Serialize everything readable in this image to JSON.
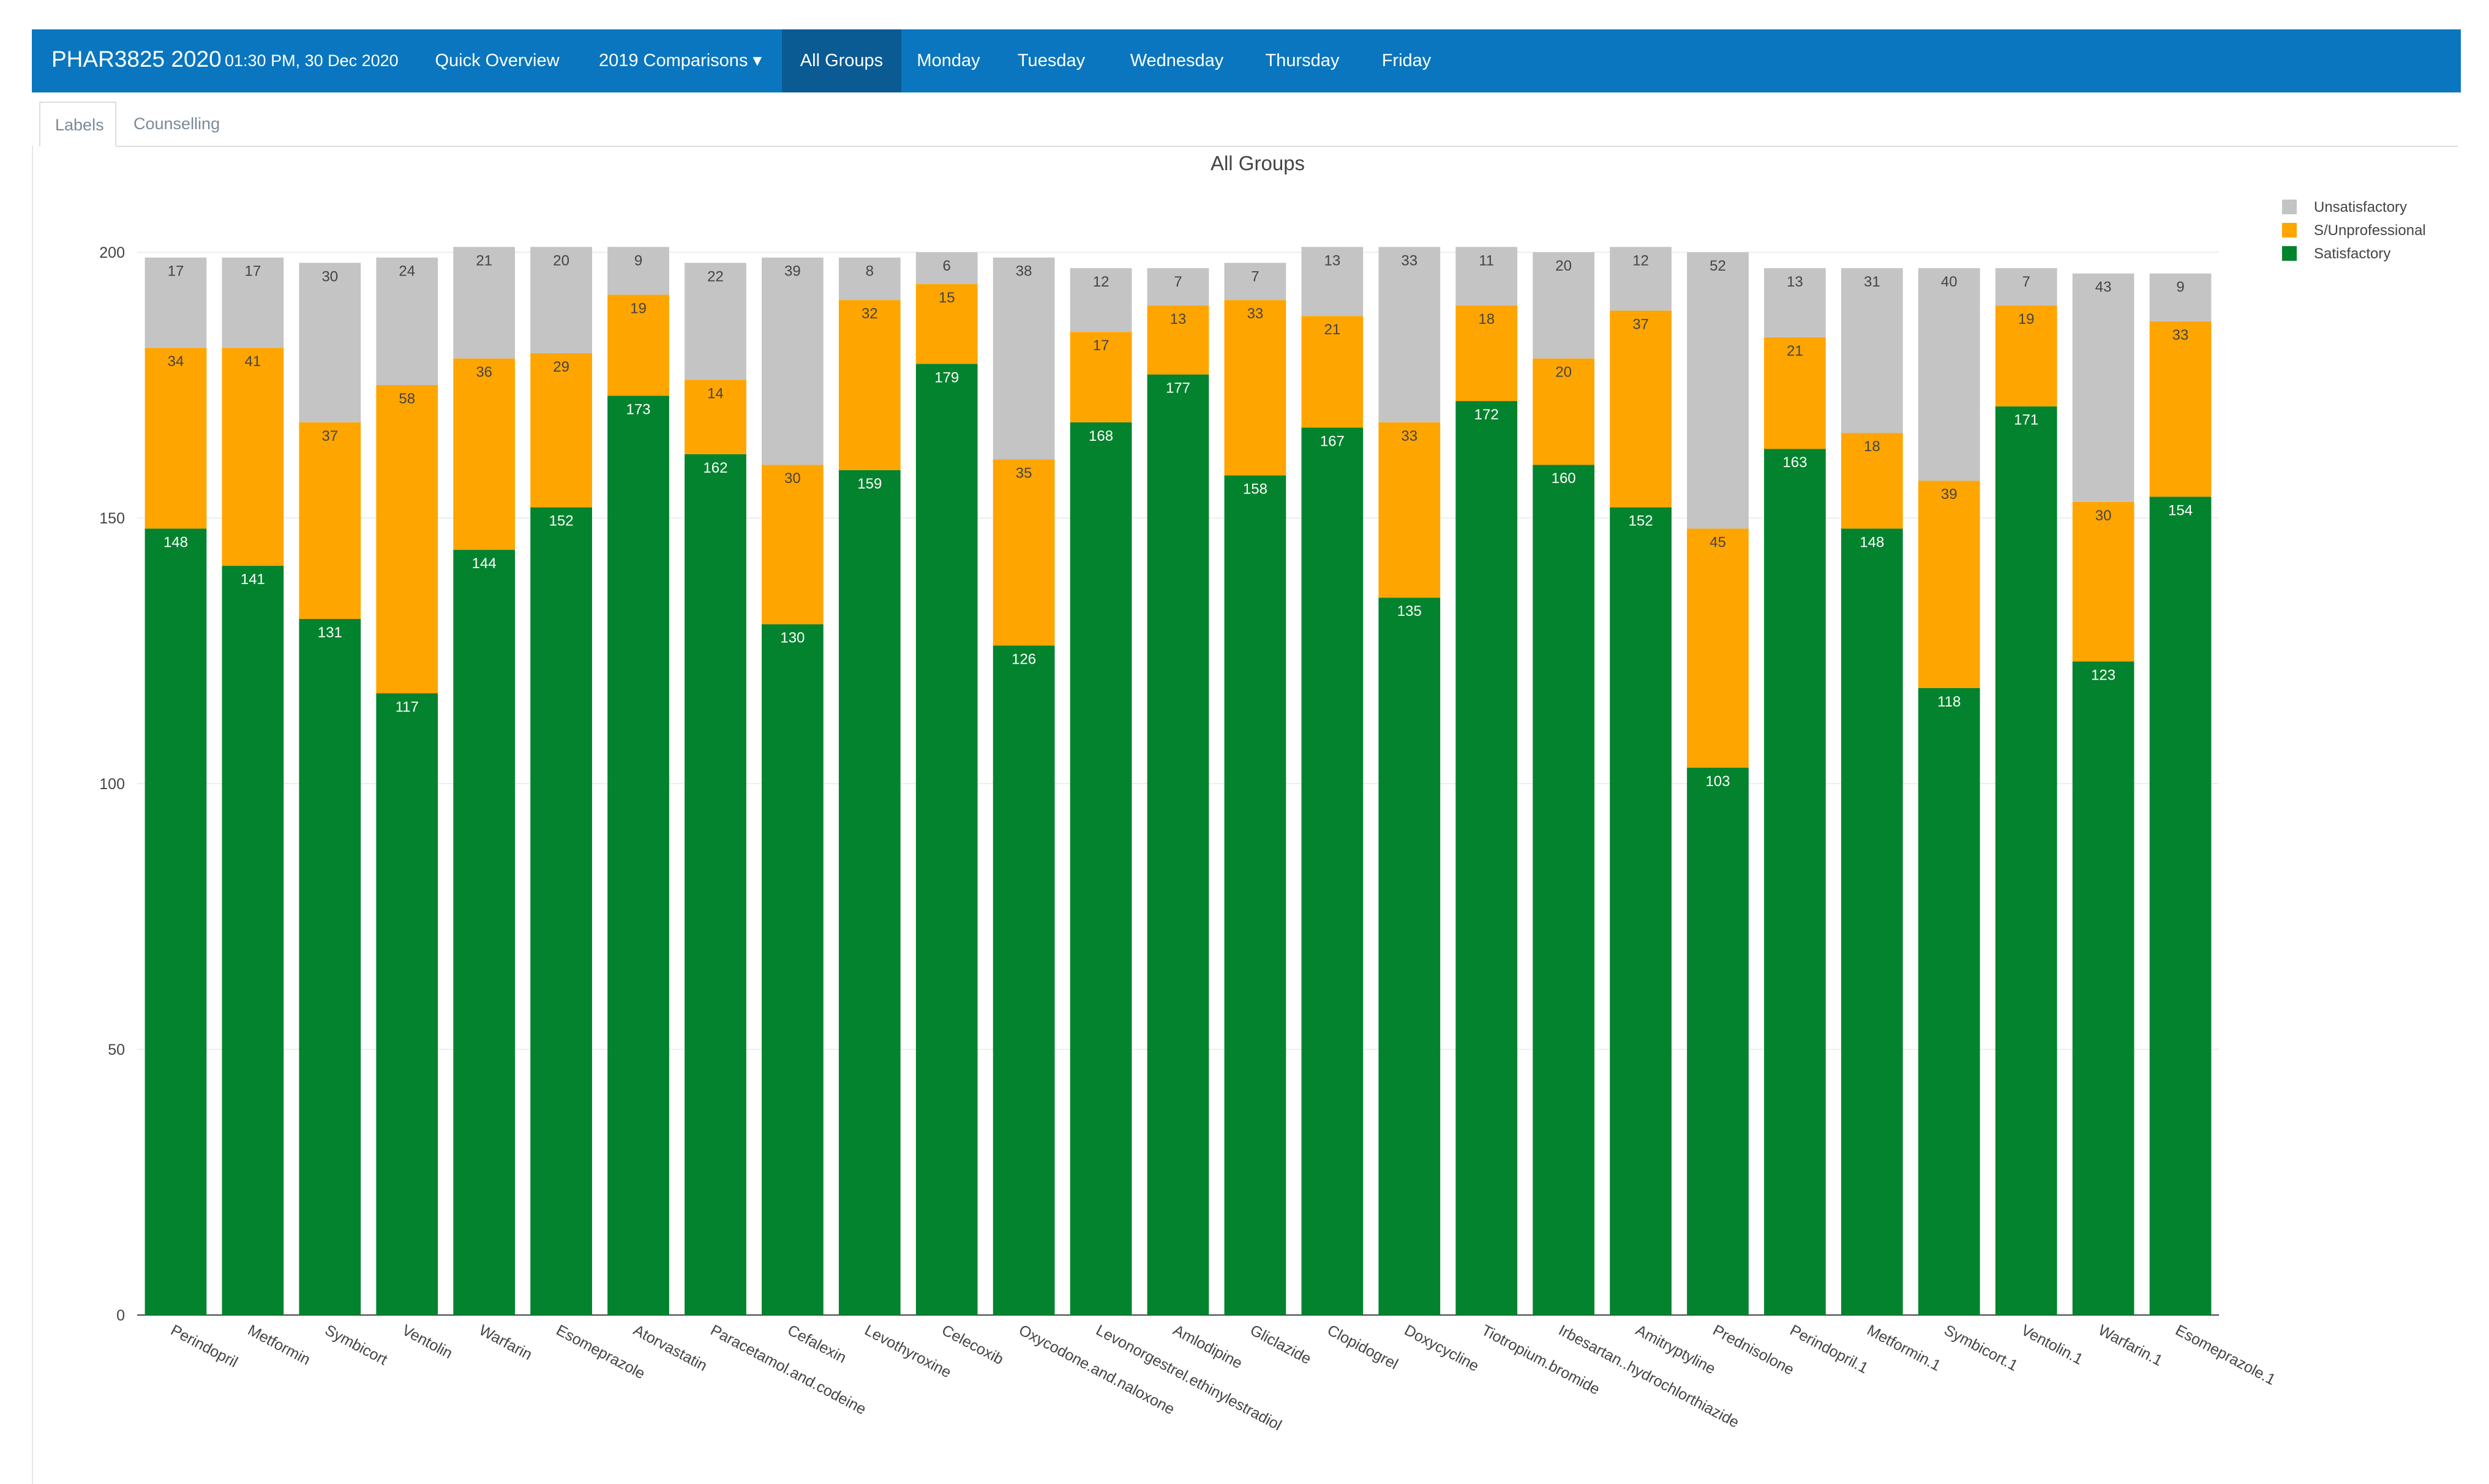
{
  "app": {
    "brand": "PHAR3825 2020",
    "datetime": "01:30 PM, 30 Dec 2020"
  },
  "nav": {
    "items": [
      {
        "label": "Quick Overview",
        "active": false
      },
      {
        "label": "2019 Comparisons ▾",
        "active": false
      },
      {
        "label": "All Groups",
        "active": true
      },
      {
        "label": "Monday",
        "active": false
      },
      {
        "label": "Tuesday",
        "active": false
      },
      {
        "label": "Wednesday",
        "active": false
      },
      {
        "label": "Thursday",
        "active": false
      },
      {
        "label": "Friday",
        "active": false
      }
    ]
  },
  "tabs": [
    {
      "label": "Labels",
      "active": true
    },
    {
      "label": "Counselling",
      "active": false
    }
  ],
  "colors": {
    "navbar": "#0a76bf",
    "nav_active": "#0a5a94",
    "satisfactory": "#04832e",
    "s_unprofessional": "#ffa500",
    "unsatisfactory": "#c4c4c4"
  },
  "chart_data": {
    "type": "bar",
    "stacked": true,
    "title": "All Groups",
    "xlabel": "",
    "ylabel": "",
    "ylim": [
      0,
      200
    ],
    "yticks": [
      0,
      50,
      100,
      150,
      200
    ],
    "grid": true,
    "legend_position": "top-right",
    "categories": [
      "Perindopril",
      "Metformin",
      "Symbicort",
      "Ventolin",
      "Warfarin",
      "Esomeprazole",
      "Atorvastatin",
      "Paracetamol.and.codeine",
      "Cefalexin",
      "Levothyroxine",
      "Celecoxib",
      "Oxycodone.and.naloxone",
      "Levonorgestrel.ethinylestradiol",
      "Amlodipine",
      "Gliclazide",
      "Clopidogrel",
      "Doxycycline",
      "Tiotropium.bromide",
      "Irbesartan..hydrochlorthiazide",
      "Amitryptyline",
      "Prednisolone",
      "Perindopril.1",
      "Metformin.1",
      "Symbicort.1",
      "Ventolin.1",
      "Warfarin.1",
      "Esomeprazole.1"
    ],
    "series": [
      {
        "name": "Satisfactory",
        "color": "#04832e",
        "values": [
          148,
          141,
          131,
          117,
          144,
          152,
          173,
          162,
          130,
          159,
          179,
          126,
          168,
          177,
          158,
          167,
          135,
          172,
          160,
          152,
          103,
          163,
          148,
          118,
          171,
          123,
          154
        ]
      },
      {
        "name": "S/Unprofessional",
        "color": "#ffa500",
        "values": [
          34,
          41,
          37,
          58,
          36,
          29,
          19,
          14,
          30,
          32,
          15,
          35,
          17,
          13,
          33,
          21,
          33,
          18,
          20,
          37,
          45,
          21,
          18,
          39,
          19,
          30,
          33
        ]
      },
      {
        "name": "Unsatisfactory",
        "color": "#c4c4c4",
        "values": [
          17,
          17,
          30,
          24,
          21,
          20,
          9,
          22,
          39,
          8,
          6,
          38,
          12,
          7,
          7,
          13,
          33,
          11,
          20,
          12,
          52,
          13,
          31,
          40,
          7,
          43,
          9
        ]
      }
    ]
  }
}
